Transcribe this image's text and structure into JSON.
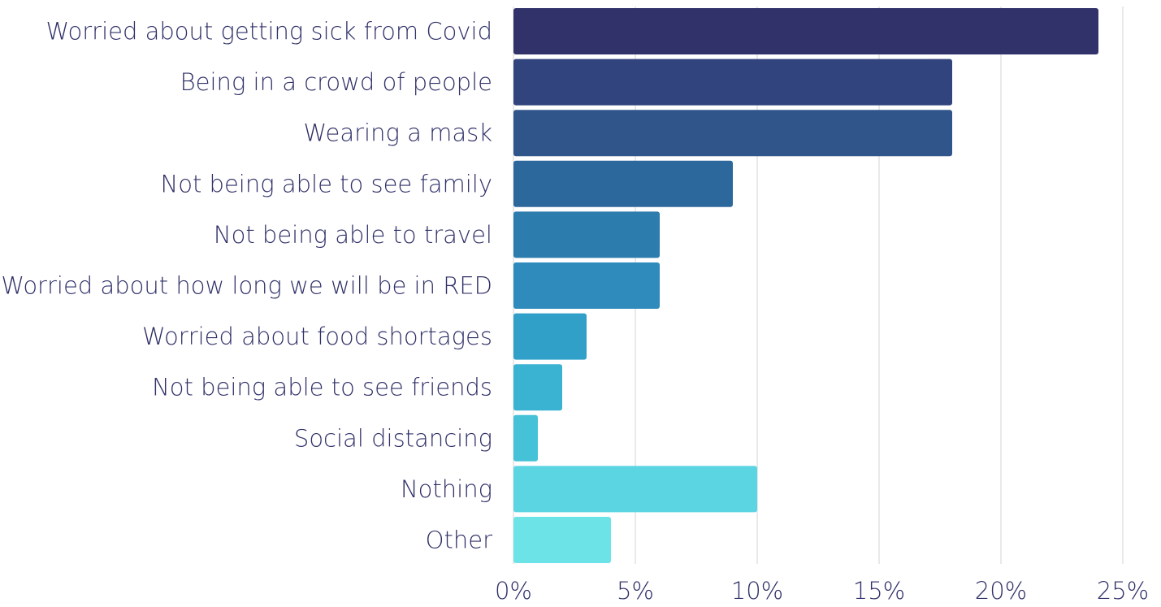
{
  "chart_data": {
    "type": "bar",
    "orientation": "horizontal",
    "categories": [
      "Worried about getting sick from Covid",
      "Being in a crowd of people",
      "Wearing a mask",
      "Not being able to see family",
      "Not being able to travel",
      "Worried about how long we will be in RED",
      "Worried about food shortages",
      "Not being able to see friends",
      "Social distancing",
      "Nothing",
      "Other"
    ],
    "values": [
      24,
      18,
      18,
      9,
      6,
      6,
      3,
      2,
      1,
      10,
      4
    ],
    "colors": [
      "#31326a",
      "#32447e",
      "#30558b",
      "#2d689c",
      "#2d7cae",
      "#2e8bbb",
      "#31a0c9",
      "#3ab2d2",
      "#45c2d7",
      "#5cd5e2",
      "#6ce3e7"
    ],
    "title": "",
    "xlabel": "",
    "ylabel": "",
    "xlim": [
      0,
      25
    ],
    "x_ticks": [
      0,
      5,
      10,
      15,
      20,
      25
    ],
    "x_tick_labels": [
      "0%",
      "5%",
      "10%",
      "15%",
      "20%",
      "25%"
    ],
    "unit": "%",
    "grid": true,
    "legend": "none"
  }
}
